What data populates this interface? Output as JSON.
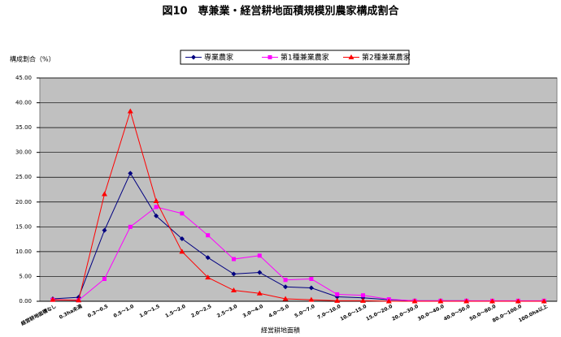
{
  "chart_data": {
    "type": "line",
    "title": "図10　専兼業・経営耕地面積規模別農家構成割合",
    "y_label": "構成割合（%）",
    "x_label": "経営耕地面積",
    "categories": [
      "経営耕地面積なし",
      "0.3ha未満",
      "0.3～0.5",
      "0.5～1.0",
      "1.0～1.5",
      "1.5～2.0",
      "2.0～2.5",
      "2.5～3.0",
      "3.0～4.0",
      "4.0～5.0",
      "5.0～7.0",
      "7.0～10.0",
      "10.0～15.0",
      "15.0～20.0",
      "20.0～30.0",
      "30.0～40.0",
      "40.0～50.0",
      "50.0～80.0",
      "80.0～100.0",
      "100.0ha以上"
    ],
    "series": [
      {
        "name": "専業農家",
        "color": "#000080",
        "marker": "diamond",
        "values": [
          0.5,
          0.8,
          14.3,
          25.8,
          17.2,
          12.6,
          8.8,
          5.5,
          5.8,
          2.9,
          2.7,
          0.9,
          0.7,
          0.3,
          0.1,
          0.1,
          0.1,
          0,
          0,
          0
        ]
      },
      {
        "name": "第1種兼業農家",
        "color": "#ff00ff",
        "marker": "square",
        "values": [
          0.3,
          0.2,
          4.5,
          15.0,
          19.0,
          17.7,
          13.3,
          8.5,
          9.2,
          4.3,
          4.5,
          1.4,
          1.2,
          0.4,
          0.1,
          0.1,
          0.1,
          0.1,
          0.1,
          0.1
        ]
      },
      {
        "name": "第2種兼業農家",
        "color": "#ff0000",
        "marker": "triangle",
        "values": [
          0.3,
          0.2,
          21.6,
          38.3,
          20.2,
          10.0,
          4.8,
          2.2,
          1.6,
          0.5,
          0.3,
          0.1,
          0.1,
          0,
          0,
          0,
          0,
          0,
          0,
          0
        ]
      }
    ],
    "ylim": [
      0,
      45
    ],
    "yticks": [
      {
        "value": 0,
        "label": "0.00"
      },
      {
        "value": 5,
        "label": "5.00"
      },
      {
        "value": 10,
        "label": "10.00"
      },
      {
        "value": 15,
        "label": "15.00"
      },
      {
        "value": 20,
        "label": "20.00"
      },
      {
        "value": 25,
        "label": "25.00"
      },
      {
        "value": 30,
        "label": "30.00"
      },
      {
        "value": 35,
        "label": "35.00"
      },
      {
        "value": 40,
        "label": "40.00"
      },
      {
        "value": 45,
        "label": "45.00"
      }
    ],
    "grid": true,
    "plot_background": "#c0c0c0"
  }
}
